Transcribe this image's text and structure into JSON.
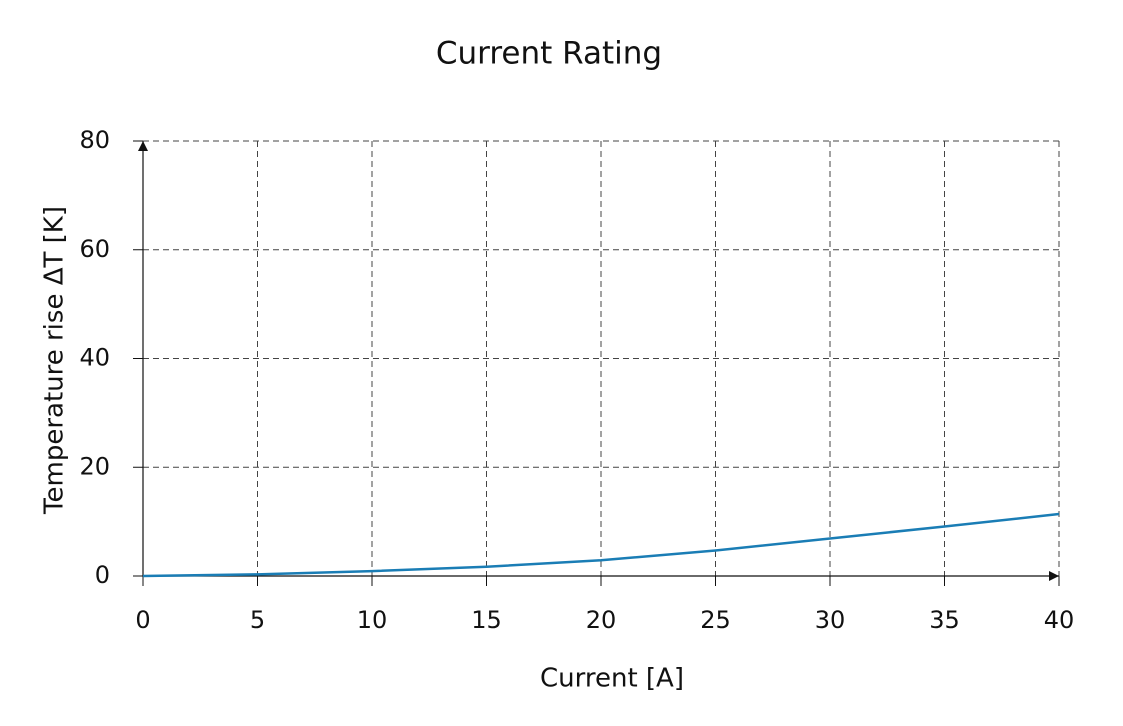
{
  "chart_data": {
    "type": "line",
    "title": "Current Rating",
    "x_label": "Current [A]",
    "y_label": "Temperature rise ΔT [K]",
    "x": [
      0,
      5,
      10,
      15,
      20,
      25,
      30,
      35,
      40
    ],
    "series": [
      {
        "name": "Temperature rise",
        "color": "#1a7db5",
        "values": [
          0,
          0.3,
          0.9,
          1.7,
          2.9,
          4.7,
          6.9,
          9.1,
          11.4
        ]
      }
    ],
    "xlim": [
      0,
      40
    ],
    "ylim": [
      0,
      80
    ],
    "xticks": [
      0,
      5,
      10,
      15,
      20,
      25,
      30,
      35,
      40
    ],
    "yticks": [
      0,
      20,
      40,
      60,
      80
    ],
    "grid": true
  }
}
